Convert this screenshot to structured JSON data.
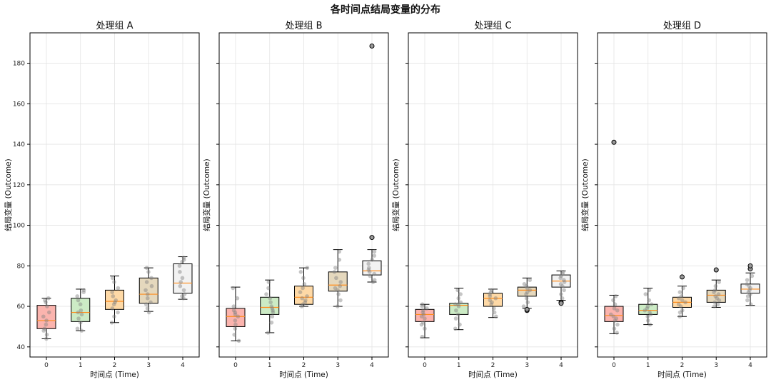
{
  "chart_data": {
    "type": "box",
    "title": "各时间点结局变量的分布",
    "shared_y": true,
    "ylim": [
      35,
      195
    ],
    "yticks": [
      40,
      60,
      80,
      100,
      120,
      140,
      160,
      180
    ],
    "x_categories": [
      "0",
      "1",
      "2",
      "3",
      "4"
    ],
    "xlabel": "时间点 (Time)",
    "ylabel": "结局变量 (Outcome)",
    "grid": true,
    "box_colors": [
      "#fbb4ae",
      "#ccebc5",
      "#fed9a6",
      "#e5d8bd",
      "#f2f2f2"
    ],
    "median_color": "#ff8c1a",
    "panels": [
      {
        "title": "处理组 A",
        "groups": [
          {
            "time": "0",
            "whislo": 44,
            "q1": 49,
            "med": 53,
            "q3": 60.5,
            "whishi": 64,
            "fliers": [],
            "points": [
              44,
              46,
              48,
              49,
              51,
              53,
              55,
              57,
              60,
              62,
              63,
              64
            ]
          },
          {
            "time": "1",
            "whislo": 48,
            "q1": 52.5,
            "med": 57,
            "q3": 64,
            "whishi": 68.5,
            "fliers": [],
            "points": [
              48,
              49,
              52,
              54,
              56,
              57,
              58,
              61,
              63,
              65,
              67,
              68
            ]
          },
          {
            "time": "2",
            "whislo": 52,
            "q1": 58.5,
            "med": 62.5,
            "q3": 68,
            "whishi": 75,
            "fliers": [],
            "points": [
              52,
              55,
              57,
              59,
              61,
              62,
              63,
              65,
              67,
              69,
              72,
              74
            ]
          },
          {
            "time": "3",
            "whislo": 57.5,
            "q1": 61.5,
            "med": 66,
            "q3": 74,
            "whishi": 79,
            "fliers": [],
            "points": [
              57,
              59,
              61,
              62,
              64,
              66,
              68,
              70,
              72,
              74,
              77,
              79
            ]
          },
          {
            "time": "4",
            "whislo": 63.5,
            "q1": 66.5,
            "med": 71.5,
            "q3": 81,
            "whishi": 84.5,
            "fliers": [],
            "points": [
              64,
              65,
              66,
              68,
              70,
              72,
              74,
              77,
              80,
              82,
              83,
              84
            ]
          }
        ]
      },
      {
        "title": "处理组 B",
        "groups": [
          {
            "time": "0",
            "whislo": 43,
            "q1": 50,
            "med": 55,
            "q3": 59,
            "whishi": 69.5,
            "fliers": [],
            "points": [
              43,
              46,
              49,
              51,
              53,
              55,
              56,
              57,
              58,
              60,
              64,
              69
            ]
          },
          {
            "time": "1",
            "whislo": 47,
            "q1": 56,
            "med": 59.5,
            "q3": 64.5,
            "whishi": 73,
            "fliers": [],
            "points": [
              47,
              52,
              55,
              57,
              58,
              59,
              60,
              62,
              64,
              66,
              69,
              72
            ]
          },
          {
            "time": "2",
            "whislo": 60,
            "q1": 61,
            "med": 64.5,
            "q3": 70,
            "whishi": 79,
            "fliers": [],
            "points": [
              60,
              61,
              62,
              63,
              64,
              65,
              67,
              69,
              71,
              74,
              77,
              79
            ]
          },
          {
            "time": "3",
            "whislo": 60,
            "q1": 67.5,
            "med": 70.5,
            "q3": 77,
            "whishi": 88,
            "fliers": [],
            "points": [
              60,
              63,
              66,
              68,
              69,
              70,
              72,
              74,
              77,
              79,
              83,
              87
            ]
          },
          {
            "time": "4",
            "whislo": 72,
            "q1": 75.5,
            "med": 77.5,
            "q3": 82.5,
            "whishi": 88,
            "fliers": [
              94,
              188.5
            ],
            "points": [
              72,
              73,
              75,
              76,
              77,
              78,
              79,
              81,
              83,
              85,
              87
            ]
          }
        ]
      },
      {
        "title": "处理组 C",
        "groups": [
          {
            "time": "0",
            "whislo": 44.5,
            "q1": 52.5,
            "med": 56,
            "q3": 58.5,
            "whishi": 61,
            "fliers": [],
            "points": [
              45,
              49,
              51,
              52,
              54,
              55,
              56,
              57,
              58,
              59,
              60,
              61
            ]
          },
          {
            "time": "1",
            "whislo": 48.5,
            "q1": 56,
            "med": 60.5,
            "q3": 61.5,
            "whishi": 69,
            "fliers": [],
            "points": [
              49,
              51,
              54,
              56,
              58,
              60,
              61,
              61,
              62,
              64,
              66,
              68
            ]
          },
          {
            "time": "2",
            "whislo": 54.5,
            "q1": 60,
            "med": 64,
            "q3": 66.5,
            "whishi": 68.5,
            "fliers": [],
            "points": [
              55,
              57,
              59,
              61,
              62,
              63,
              64,
              65,
              66,
              67,
              68
            ]
          },
          {
            "time": "3",
            "whislo": 59,
            "q1": 65,
            "med": 68,
            "q3": 69.5,
            "whishi": 74,
            "fliers": [
              58,
              58.5
            ],
            "points": [
              60,
              62,
              64,
              66,
              67,
              68,
              69,
              70,
              71,
              73
            ]
          },
          {
            "time": "4",
            "whislo": 63,
            "q1": 69.5,
            "med": 72.5,
            "q3": 75.5,
            "whishi": 77.5,
            "fliers": [
              62,
              61.5
            ],
            "points": [
              64,
              66,
              68,
              70,
              71,
              72,
              73,
              74,
              75,
              76,
              77
            ]
          }
        ]
      },
      {
        "title": "处理组 D",
        "groups": [
          {
            "time": "0",
            "whislo": 46.5,
            "q1": 52.5,
            "med": 55.5,
            "q3": 60,
            "whishi": 65.5,
            "fliers": [
              141
            ],
            "points": [
              47,
              49,
              51,
              53,
              54,
              55,
              56,
              58,
              59,
              61,
              63,
              65
            ]
          },
          {
            "time": "1",
            "whislo": 51,
            "q1": 56,
            "med": 58,
            "q3": 61,
            "whishi": 69,
            "fliers": [],
            "points": [
              51,
              53,
              55,
              56,
              57,
              58,
              59,
              60,
              61,
              63,
              66,
              68
            ]
          },
          {
            "time": "2",
            "whislo": 55,
            "q1": 59.5,
            "med": 62,
            "q3": 64.5,
            "whishi": 70,
            "fliers": [
              74.5
            ],
            "points": [
              55,
              57,
              58,
              60,
              61,
              62,
              63,
              64,
              65,
              67,
              69
            ]
          },
          {
            "time": "3",
            "whislo": 59.5,
            "q1": 62,
            "med": 65.5,
            "q3": 68,
            "whishi": 73,
            "fliers": [
              78
            ],
            "points": [
              60,
              61,
              62,
              63,
              64,
              65,
              66,
              67,
              68,
              70,
              72
            ]
          },
          {
            "time": "4",
            "whislo": 60.5,
            "q1": 66.5,
            "med": 68.5,
            "q3": 71,
            "whishi": 76.5,
            "fliers": [
              78.5,
              80
            ],
            "points": [
              61,
              63,
              65,
              66,
              67,
              68,
              69,
              70,
              71,
              73,
              75
            ]
          }
        ]
      }
    ]
  }
}
